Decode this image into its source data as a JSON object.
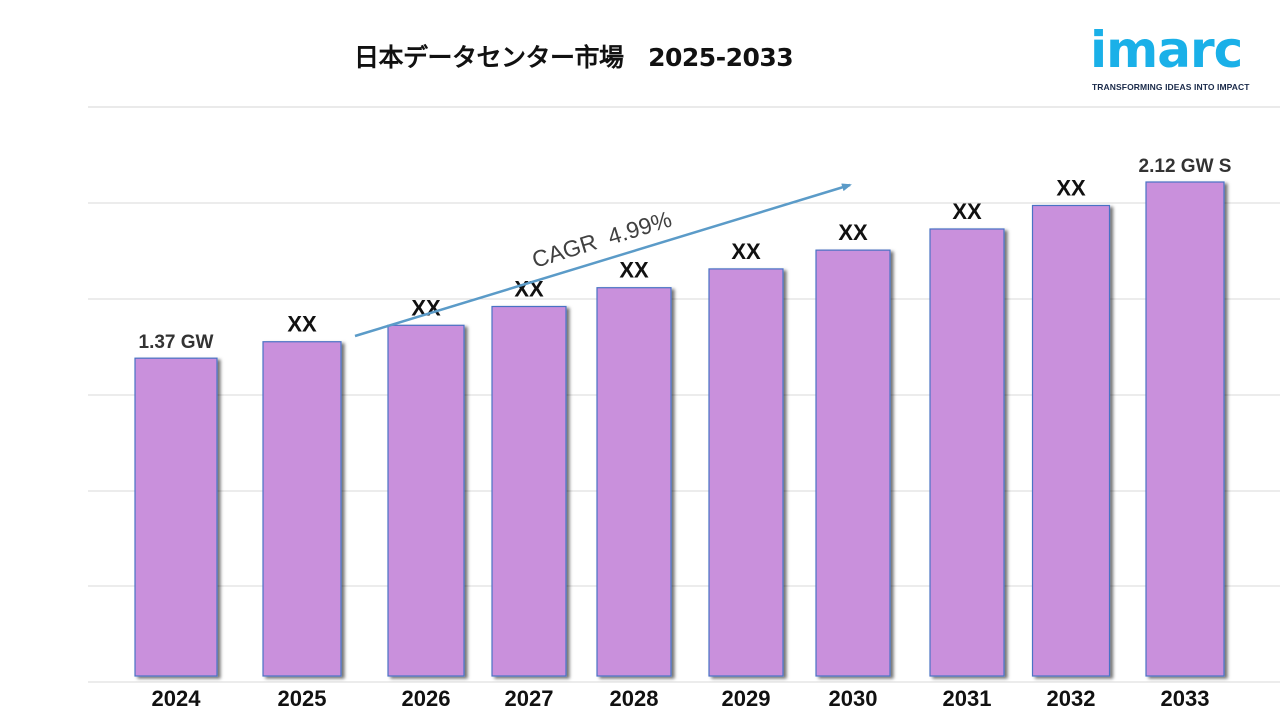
{
  "header": {
    "title": "日本データセンター市場   2025-2033"
  },
  "logo": {
    "word": "imarc",
    "tagline": "TRANSFORMING IDEAS INTO IMPACT",
    "brand_color": "#1ab0e8"
  },
  "chart_data": {
    "type": "bar",
    "title": "日本データセンター市場   2025-2033",
    "xlabel": "",
    "ylabel": "",
    "unit": "GW",
    "categories": [
      "2024",
      "2025",
      "2026",
      "2027",
      "2028",
      "2029",
      "2030",
      "2031",
      "2032",
      "2033"
    ],
    "values": [
      1.37,
      1.44,
      1.51,
      1.59,
      1.67,
      1.75,
      1.83,
      1.92,
      2.02,
      2.12
    ],
    "data_labels": [
      "1.37 GW",
      "XX",
      "XX",
      "XX",
      "XX",
      "XX",
      "XX",
      "XX",
      "XX",
      "2.12 GW S"
    ],
    "ylim": [
      0,
      2.2
    ],
    "grid": true,
    "bar_color": "#c990dc",
    "bar_edge_color": "#4a72c4",
    "annotation": {
      "text": "CAGR  4.99%",
      "arrow_color": "#5b9bc8"
    }
  }
}
